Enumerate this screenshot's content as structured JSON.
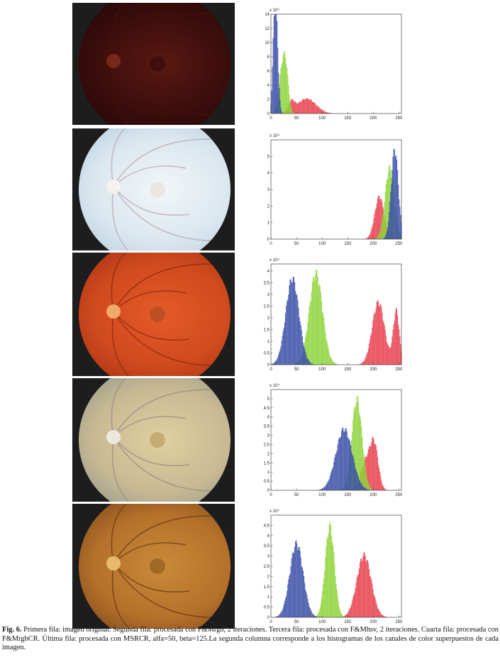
{
  "caption": {
    "label": "Fig. 6.",
    "text": " Primera fila: imagen original. Segunda fila: procesada con F&Mrgb, 2 iteraciones. Tercera fila: procesada con F&Mhsv, 2 iteraciones. Cuarta fila: procesada con F&MrgbCR. Última fila: procesada con MSRCR, alfa=50, beta=125.La  segunda columna corresponde a los histogramas de los canales de color superpuestos de cada imagen."
  },
  "colors": {
    "red": "#e8404e",
    "green": "#8fd43a",
    "blue": "#3a4fa8",
    "frame": "#1d1d1d"
  },
  "rows": [
    {
      "image_name": "original-fundus",
      "fundus": {
        "bg": "#3a0d0b",
        "rim": "#2a0908",
        "center": "#5a1812",
        "disc": "#7a2a1a",
        "macula": "#2a0a08"
      },
      "scale_label": "x 10⁴",
      "yticks": [
        "0",
        "2",
        "4",
        "6",
        "8",
        "10",
        "12",
        "14"
      ],
      "xticks": [
        "0",
        "50",
        "100",
        "150",
        "200",
        "250"
      ],
      "chart_data": {
        "type": "area",
        "x_range": [
          0,
          255
        ],
        "ylim": [
          0,
          14
        ],
        "series": [
          {
            "name": "",
            "color": "red",
            "peaks": [
              [
                70,
                2.2,
                18
              ],
              [
                40,
                1.5,
                6
              ]
            ]
          },
          {
            "name": "",
            "color": "green",
            "peaks": [
              [
                22,
                6.5,
                6
              ],
              [
                30,
                5.0,
                5
              ]
            ]
          },
          {
            "name": "",
            "color": "blue",
            "peaks": [
              [
                10,
                14.0,
                4
              ],
              [
                6,
                6.0,
                3
              ]
            ]
          }
        ]
      }
    },
    {
      "image_name": "fmrgb-fundus",
      "fundus": {
        "bg": "#dbe7ef",
        "rim": "#c4d8e6",
        "center": "#f2f6f8",
        "disc": "#f6f2ee",
        "macula": "#e6dbd2"
      },
      "scale_label": "x 10⁴",
      "yticks": [
        "0",
        "1",
        "2",
        "3",
        "4",
        "5"
      ],
      "xticks": [
        "0",
        "50",
        "100",
        "150",
        "200",
        "250"
      ],
      "chart_data": {
        "type": "area",
        "x_range": [
          0,
          255
        ],
        "ylim": [
          0,
          6
        ],
        "series": [
          {
            "name": "",
            "color": "red",
            "peaks": [
              [
                212,
                2.7,
                9
              ]
            ]
          },
          {
            "name": "",
            "color": "green",
            "peaks": [
              [
                232,
                4.5,
                9
              ]
            ]
          },
          {
            "name": "",
            "color": "blue",
            "peaks": [
              [
                242,
                5.7,
                7
              ]
            ]
          }
        ]
      }
    },
    {
      "image_name": "fmhsv-fundus",
      "fundus": {
        "bg": "#cf4a1e",
        "rim": "#b53a18",
        "center": "#e65a28",
        "disc": "#f1b070",
        "macula": "#9a4a20"
      },
      "scale_label": "x 10⁴",
      "yticks": [
        "0",
        "0.5",
        "1",
        "1.5",
        "2",
        "2.5",
        "3",
        "3.5",
        "4"
      ],
      "xticks": [
        "0",
        "50",
        "100",
        "150",
        "200",
        "250"
      ],
      "chart_data": {
        "type": "area",
        "x_range": [
          0,
          255
        ],
        "ylim": [
          0,
          4.3
        ],
        "series": [
          {
            "name": "",
            "color": "red",
            "peaks": [
              [
                210,
                2.8,
                12
              ],
              [
                245,
                2.4,
                6
              ]
            ]
          },
          {
            "name": "",
            "color": "green",
            "peaks": [
              [
                88,
                4.1,
                13
              ]
            ]
          },
          {
            "name": "",
            "color": "blue",
            "peaks": [
              [
                42,
                3.85,
                13
              ]
            ]
          }
        ]
      }
    },
    {
      "image_name": "fmrgbcr-fundus",
      "fundus": {
        "bg": "#c9b993",
        "rim": "#a4a58e",
        "center": "#e0cf9e",
        "disc": "#eceae2",
        "macula": "#b09050"
      },
      "scale_label": "x 10⁴",
      "yticks": [
        "0",
        "0.5",
        "1",
        "1.5",
        "2",
        "2.5",
        "3",
        "3.5",
        "4",
        "4.5",
        "5"
      ],
      "xticks": [
        "0",
        "50",
        "100",
        "150",
        "200",
        "250"
      ],
      "chart_data": {
        "type": "area",
        "x_range": [
          0,
          255
        ],
        "ylim": [
          0,
          5.5
        ],
        "series": [
          {
            "name": "",
            "color": "red",
            "peaks": [
              [
                202,
                2.5,
                8
              ],
              [
                185,
                1.6,
                10
              ]
            ]
          },
          {
            "name": "",
            "color": "green",
            "peaks": [
              [
                168,
                5.2,
                10
              ]
            ]
          },
          {
            "name": "",
            "color": "blue",
            "peaks": [
              [
                143,
                3.5,
                16
              ]
            ]
          }
        ]
      }
    },
    {
      "image_name": "msrcr-fundus",
      "fundus": {
        "bg": "#b5702a",
        "rim": "#8f5620",
        "center": "#c98a3a",
        "disc": "#e8c070",
        "macula": "#7d5018"
      },
      "scale_label": "x 10⁴",
      "yticks": [
        "0",
        "0.5",
        "1",
        "1.5",
        "2",
        "2.5",
        "3",
        "3.5",
        "4",
        "4.5"
      ],
      "xticks": [
        "0",
        "50",
        "100",
        "150",
        "200",
        "250"
      ],
      "chart_data": {
        "type": "area",
        "x_range": [
          0,
          255
        ],
        "ylim": [
          0,
          5
        ],
        "series": [
          {
            "name": "",
            "color": "red",
            "peaks": [
              [
                182,
                3.2,
                14
              ]
            ]
          },
          {
            "name": "",
            "color": "green",
            "peaks": [
              [
                115,
                4.7,
                9
              ]
            ]
          },
          {
            "name": "",
            "color": "blue",
            "peaks": [
              [
                50,
                3.8,
                13
              ]
            ]
          }
        ]
      }
    }
  ]
}
